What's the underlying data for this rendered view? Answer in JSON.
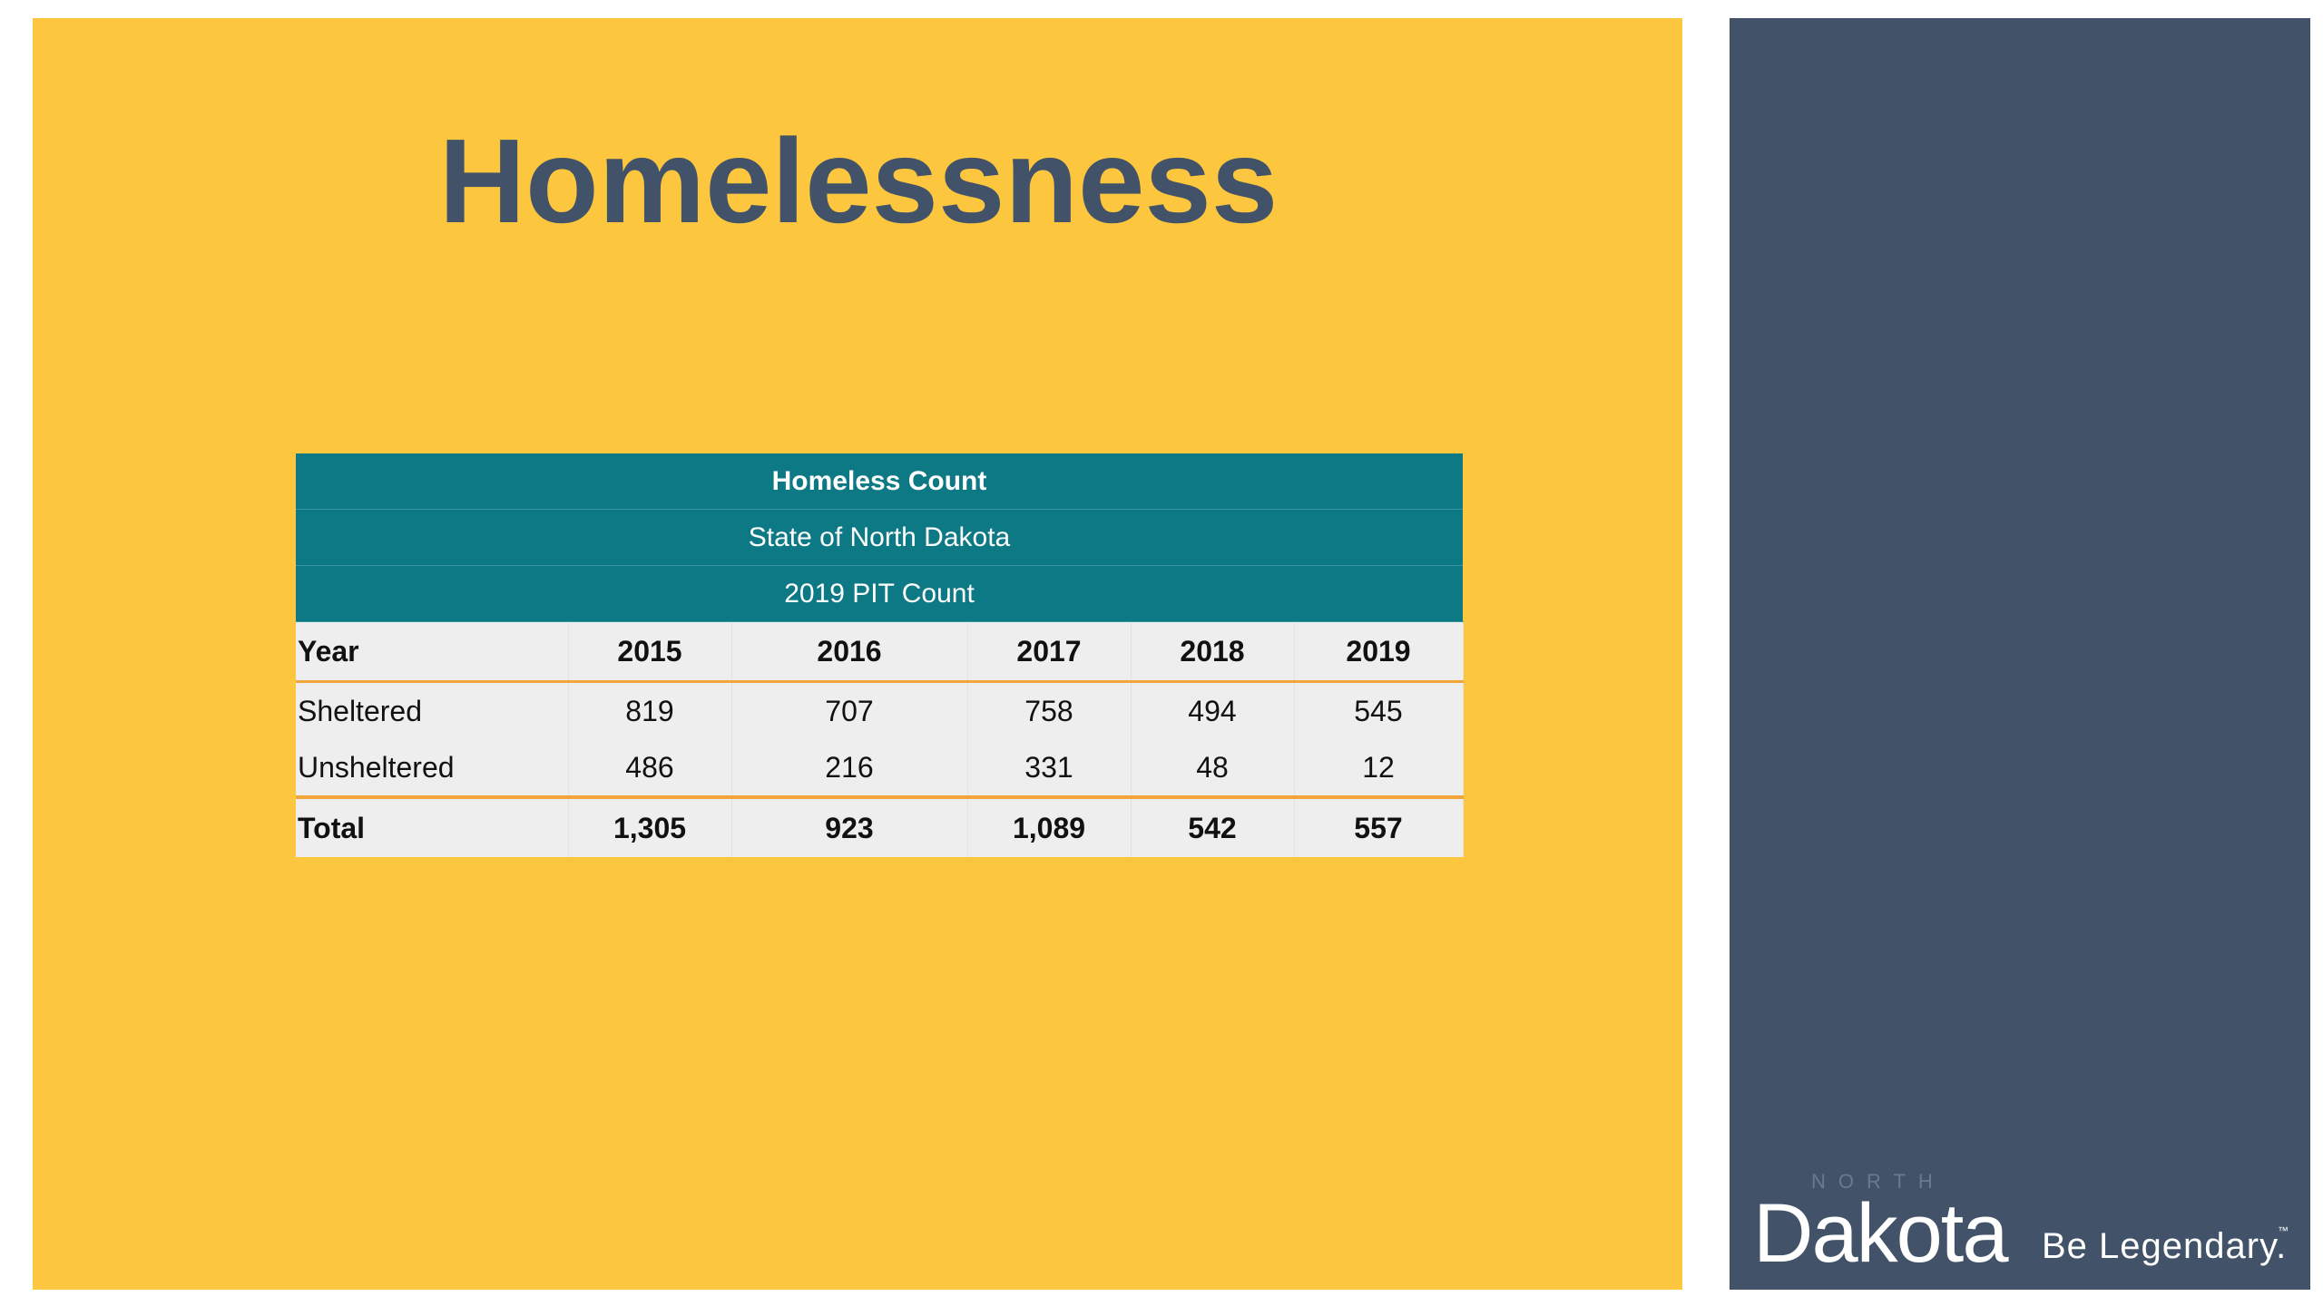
{
  "slide": {
    "title": "Homelessness"
  },
  "table": {
    "header_lines": [
      "Homeless Count",
      "State of North Dakota",
      "2019 PIT Count"
    ],
    "columns": [
      "Year",
      "2015",
      "2016",
      "2017",
      "2018",
      "2019"
    ],
    "rows": [
      {
        "label": "Sheltered",
        "values": [
          "819",
          "707",
          "758",
          "494",
          "545"
        ]
      },
      {
        "label": "Unsheltered",
        "values": [
          "486",
          "216",
          "331",
          "48",
          "12"
        ]
      }
    ],
    "total": {
      "label": "Total",
      "values": [
        "1,305",
        "923",
        "1,089",
        "542",
        "557"
      ]
    }
  },
  "logo": {
    "north": "NORTH",
    "name": "Dakota",
    "tagline": "Be Legendary.",
    "trademark": "™"
  },
  "colors": {
    "main_panel": "#fcc73f",
    "side_panel": "#425369",
    "table_header": "#0c7985",
    "table_body": "#eeeeee",
    "table_accent": "#f3a53a"
  }
}
